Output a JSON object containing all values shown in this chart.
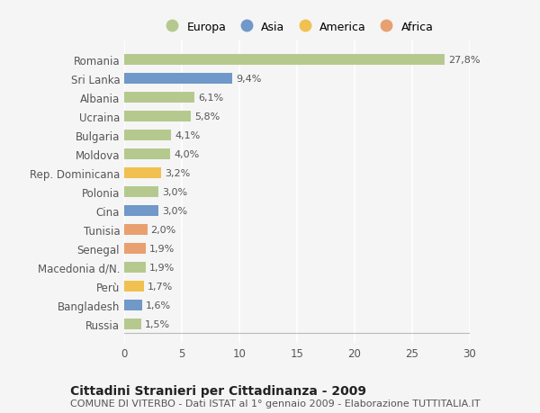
{
  "categories": [
    "Romania",
    "Sri Lanka",
    "Albania",
    "Ucraina",
    "Bulgaria",
    "Moldova",
    "Rep. Dominicana",
    "Polonia",
    "Cina",
    "Tunisia",
    "Senegal",
    "Macedonia d/N.",
    "Perù",
    "Bangladesh",
    "Russia"
  ],
  "values": [
    27.8,
    9.4,
    6.1,
    5.8,
    4.1,
    4.0,
    3.2,
    3.0,
    3.0,
    2.0,
    1.9,
    1.9,
    1.7,
    1.6,
    1.5
  ],
  "labels": [
    "27,8%",
    "9,4%",
    "6,1%",
    "5,8%",
    "4,1%",
    "4,0%",
    "3,2%",
    "3,0%",
    "3,0%",
    "2,0%",
    "1,9%",
    "1,9%",
    "1,7%",
    "1,6%",
    "1,5%"
  ],
  "continent": [
    "Europa",
    "Asia",
    "Europa",
    "Europa",
    "Europa",
    "Europa",
    "America",
    "Europa",
    "Asia",
    "Africa",
    "Africa",
    "Europa",
    "America",
    "Asia",
    "Europa"
  ],
  "colors": {
    "Europa": "#b5c98e",
    "Asia": "#7098c8",
    "America": "#f0c050",
    "Africa": "#e8a070"
  },
  "legend_order": [
    "Europa",
    "Asia",
    "America",
    "Africa"
  ],
  "title": "Cittadini Stranieri per Cittadinanza - 2009",
  "subtitle": "COMUNE DI VITERBO - Dati ISTAT al 1° gennaio 2009 - Elaborazione TUTTITALIA.IT",
  "xlim": [
    0,
    30
  ],
  "xticks": [
    0,
    5,
    10,
    15,
    20,
    25,
    30
  ],
  "background_color": "#f5f5f5",
  "grid_color": "#ffffff",
  "bar_height": 0.55,
  "title_fontsize": 10,
  "subtitle_fontsize": 8,
  "label_fontsize": 8,
  "tick_fontsize": 8.5
}
